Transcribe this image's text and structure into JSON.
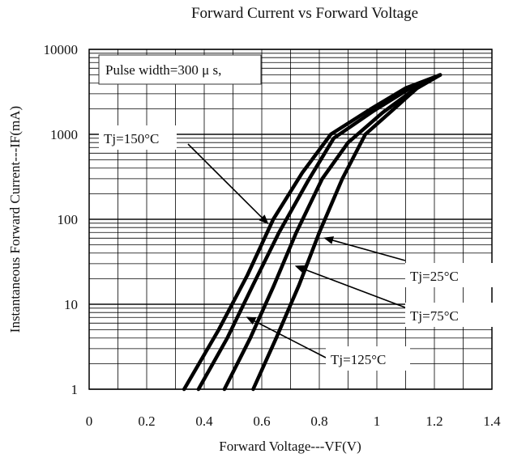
{
  "chart_data": {
    "type": "line",
    "title": "Forward Current vs Forward Voltage",
    "xlabel": "Forward Voltage---VF(V)",
    "ylabel": "Instantaneous Forward Current---IF(mA)",
    "x_ticks": [
      0,
      0.2,
      0.4,
      0.6,
      0.8,
      1,
      1.2,
      1.4
    ],
    "x_tick_labels": [
      "0",
      "0.2",
      "0.4",
      "0.6",
      "0.8",
      "1",
      "1.2",
      "1.4"
    ],
    "y_ticks": [
      1,
      10,
      100,
      1000,
      10000
    ],
    "y_tick_labels": [
      "1",
      "10",
      "100",
      "1000",
      "10000"
    ],
    "xlim": [
      0,
      1.4
    ],
    "ylim": [
      1,
      10000
    ],
    "y_scale": "log",
    "grid": true,
    "note": "Pulse width=300 μ s,",
    "series": [
      {
        "name": "Tj=150°C",
        "x": [
          0.33,
          0.45,
          0.55,
          0.64,
          0.74,
          0.84,
          0.98,
          1.1,
          1.22
        ],
        "y": [
          1,
          5,
          22,
          100,
          350,
          1000,
          2000,
          3500,
          5000
        ]
      },
      {
        "name": "Tj=125°C",
        "x": [
          0.38,
          0.48,
          0.57,
          0.66,
          0.76,
          0.85,
          0.99,
          1.11,
          1.22
        ],
        "y": [
          1,
          4,
          17,
          70,
          280,
          900,
          1900,
          3400,
          5000
        ]
      },
      {
        "name": "Tj=75°C",
        "x": [
          0.47,
          0.56,
          0.64,
          0.72,
          0.81,
          0.9,
          1.02,
          1.12,
          1.22
        ],
        "y": [
          1,
          4,
          16,
          70,
          300,
          800,
          1800,
          3200,
          5000
        ]
      },
      {
        "name": "Tj=25°C",
        "x": [
          0.57,
          0.65,
          0.73,
          0.8,
          0.88,
          0.96,
          1.06,
          1.14,
          1.22
        ],
        "y": [
          1,
          4,
          17,
          70,
          300,
          1000,
          2000,
          3500,
          5000
        ]
      }
    ],
    "annotations": [
      {
        "text": "Tj=150°C",
        "points_to": "Tj=150°C"
      },
      {
        "text": "Tj=25°C",
        "points_to": "Tj=25°C"
      },
      {
        "text": "Tj=75°C",
        "points_to": "Tj=75°C"
      },
      {
        "text": "Tj=125°C",
        "points_to": "Tj=125°C"
      }
    ]
  }
}
